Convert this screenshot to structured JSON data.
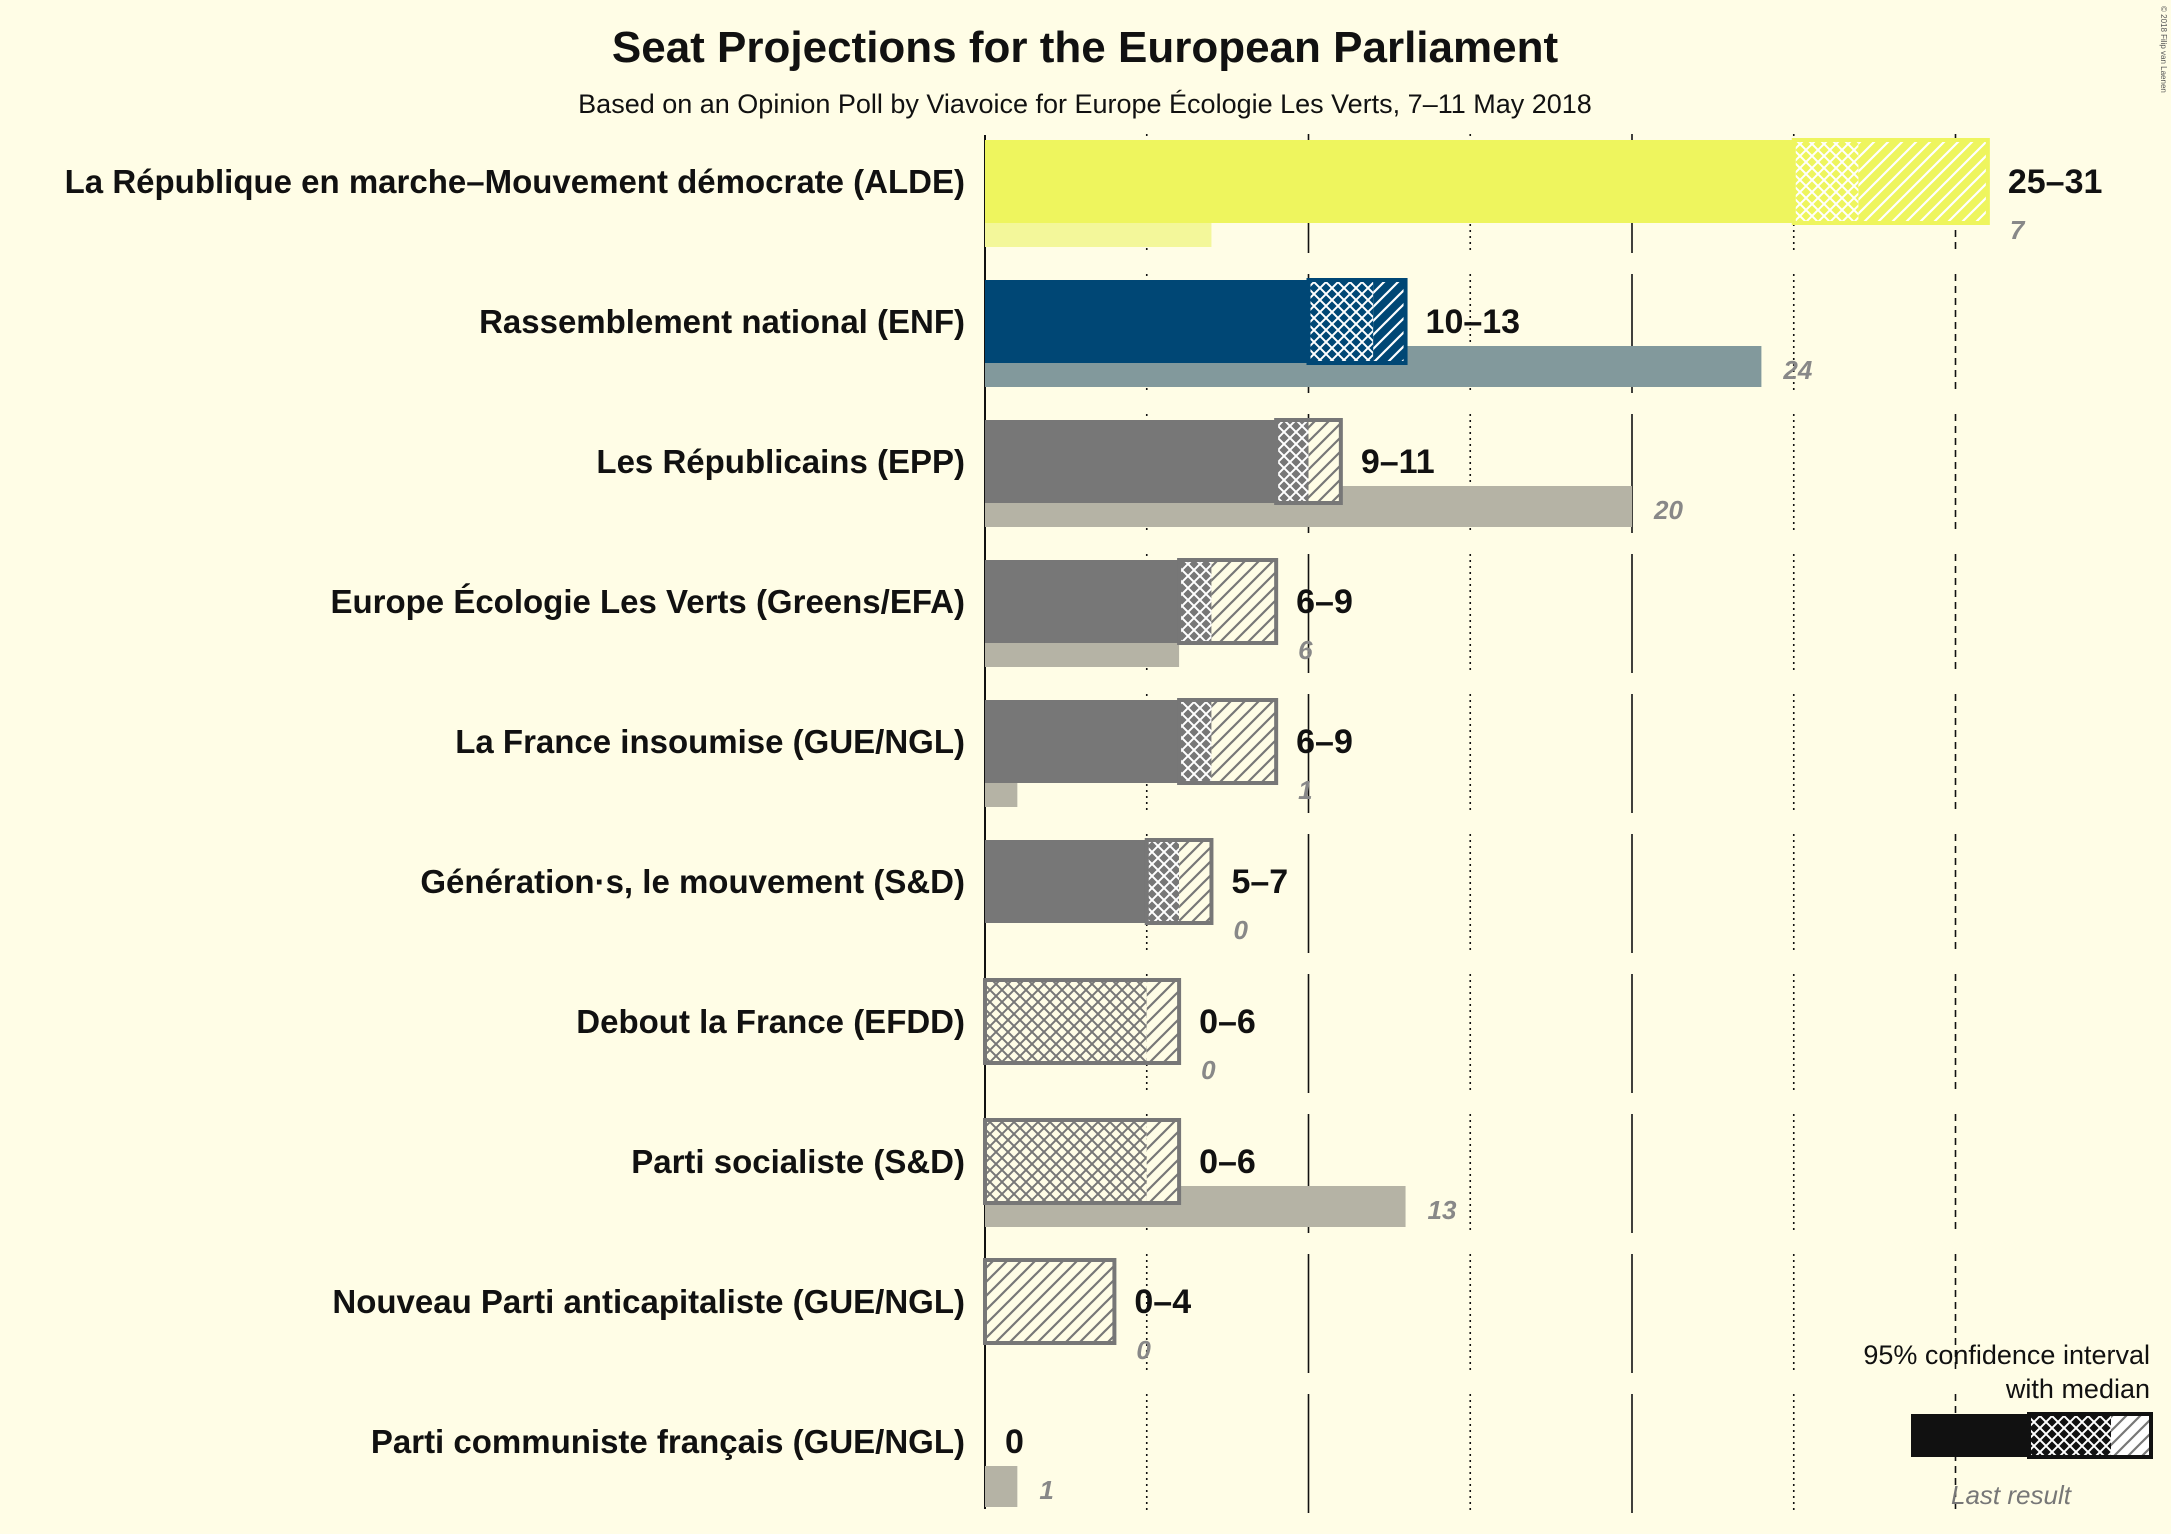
{
  "title": "Seat Projections for the European Parliament",
  "subtitle": "Based on an Opinion Poll by Viavoice for Europe Écologie Les Verts, 7–11 May 2018",
  "copyright": "© 2018 Filip van Laenen",
  "legend": {
    "line1": "95% confidence interval",
    "line2": "with median",
    "last_result": "Last result"
  },
  "chart_data": {
    "type": "bar",
    "orientation": "horizontal",
    "title": "Seat Projections for the European Parliament",
    "subtitle": "Based on an Opinion Poll by Viavoice for Europe Écologie Les Verts, 7–11 May 2018",
    "xlim": [
      0,
      31
    ],
    "grid": "vertical lines every 5 seats (solid every 10, dotted at 5s), dashed majority-style line at 30",
    "legend_placement": "bottom-right",
    "parties": [
      {
        "name": "La République en marche–Mouvement démocrate (ALDE)",
        "low": 25,
        "median": 27,
        "high": 31,
        "last": 7,
        "range_label": "25–31",
        "last_label": "7",
        "color": "#EEF55E",
        "last_color": "#F3F79A"
      },
      {
        "name": "Rassemblement national (ENF)",
        "low": 10,
        "median": 12,
        "high": 13,
        "last": 24,
        "range_label": "10–13",
        "last_label": "24",
        "color": "#004775",
        "last_color": "#82999C"
      },
      {
        "name": "Les Républicains (EPP)",
        "low": 9,
        "median": 10,
        "high": 11,
        "last": 20,
        "range_label": "9–11",
        "last_label": "20",
        "color": "#777777",
        "last_color": "#B5B3A5"
      },
      {
        "name": "Europe Écologie Les Verts (Greens/EFA)",
        "low": 6,
        "median": 7,
        "high": 9,
        "last": 6,
        "range_label": "6–9",
        "last_label": "6",
        "color": "#777777",
        "last_color": "#B5B3A5"
      },
      {
        "name": "La France insoumise (GUE/NGL)",
        "low": 6,
        "median": 7,
        "high": 9,
        "last": 1,
        "range_label": "6–9",
        "last_label": "1",
        "color": "#777777",
        "last_color": "#B5B3A5"
      },
      {
        "name": "Génération·s, le mouvement (S&D)",
        "low": 5,
        "median": 6,
        "high": 7,
        "last": 0,
        "range_label": "5–7",
        "last_label": "0",
        "color": "#777777",
        "last_color": "#B5B3A5"
      },
      {
        "name": "Debout la France (EFDD)",
        "low": 0,
        "median": 5,
        "high": 6,
        "last": 0,
        "range_label": "0–6",
        "last_label": "0",
        "color": "#777777",
        "last_color": "#B5B3A5"
      },
      {
        "name": "Parti socialiste (S&D)",
        "low": 0,
        "median": 5,
        "high": 6,
        "last": 13,
        "range_label": "0–6",
        "last_label": "13",
        "color": "#777777",
        "last_color": "#B5B3A5"
      },
      {
        "name": "Nouveau Parti anticapitaliste (GUE/NGL)",
        "low": 0,
        "median": 0,
        "high": 4,
        "last": 0,
        "range_label": "0–4",
        "last_label": "0",
        "color": "#777777",
        "last_color": "#B5B3A5"
      },
      {
        "name": "Parti communiste français (GUE/NGL)",
        "low": 0,
        "median": 0,
        "high": 0,
        "last": 1,
        "range_label": "0",
        "last_label": "1",
        "color": "#777777",
        "last_color": "#B5B3A5"
      }
    ]
  }
}
